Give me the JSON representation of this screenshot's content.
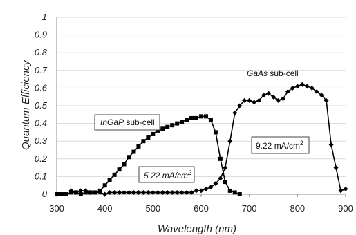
{
  "chart_data": {
    "type": "line",
    "title": "",
    "xlabel": "Wavelength (nm)",
    "ylabel": "Quantum Efficiency",
    "xlim": [
      300,
      900
    ],
    "ylim": [
      0,
      1
    ],
    "x_ticks": [
      "300",
      "400",
      "500",
      "600",
      "700",
      "800",
      "900"
    ],
    "y_ticks": [
      "0",
      "0.1",
      "0.2",
      "0.3",
      "0.4",
      "0.5",
      "0.6",
      "0.7",
      "0.8",
      "0.9",
      "1"
    ],
    "grid": "horizontal",
    "series": [
      {
        "marker": "square",
        "x": [
          300,
          310,
          320,
          330,
          340,
          350,
          360,
          370,
          380,
          390,
          400,
          410,
          420,
          430,
          440,
          450,
          460,
          470,
          480,
          490,
          500,
          510,
          520,
          530,
          540,
          550,
          560,
          570,
          580,
          590,
          600,
          610,
          620,
          630,
          640,
          650,
          660,
          670,
          680
        ],
        "values": [
          0,
          0,
          0,
          0.01,
          0.01,
          0,
          0.01,
          0.01,
          0.01,
          0.02,
          0.05,
          0.08,
          0.11,
          0.14,
          0.17,
          0.21,
          0.24,
          0.27,
          0.3,
          0.32,
          0.34,
          0.36,
          0.37,
          0.38,
          0.39,
          0.4,
          0.41,
          0.42,
          0.43,
          0.43,
          0.44,
          0.44,
          0.42,
          0.35,
          0.2,
          0.07,
          0.02,
          0.01,
          0
        ]
      },
      {
        "marker": "diamond",
        "x": [
          330,
          340,
          350,
          360,
          370,
          380,
          390,
          400,
          410,
          420,
          430,
          440,
          450,
          460,
          470,
          480,
          490,
          500,
          510,
          520,
          530,
          540,
          550,
          560,
          570,
          580,
          590,
          600,
          610,
          620,
          630,
          640,
          650,
          660,
          670,
          680,
          690,
          700,
          710,
          720,
          730,
          740,
          750,
          760,
          770,
          780,
          790,
          800,
          810,
          820,
          830,
          840,
          850,
          860,
          870,
          880,
          890,
          900
        ],
        "values": [
          0.02,
          0.01,
          0.02,
          0.02,
          0.01,
          0.01,
          0.01,
          0,
          0.01,
          0.01,
          0.01,
          0.01,
          0.01,
          0.01,
          0.01,
          0.01,
          0.01,
          0.01,
          0.01,
          0.01,
          0.01,
          0.01,
          0.01,
          0.01,
          0.01,
          0.01,
          0.02,
          0.02,
          0.03,
          0.04,
          0.06,
          0.09,
          0.15,
          0.3,
          0.46,
          0.5,
          0.53,
          0.53,
          0.52,
          0.53,
          0.56,
          0.57,
          0.55,
          0.53,
          0.54,
          0.58,
          0.6,
          0.61,
          0.62,
          0.61,
          0.6,
          0.58,
          0.56,
          0.53,
          0.28,
          0.15,
          0.02,
          0.03
        ]
      }
    ],
    "annotations": {
      "ingap_prefix": "InGaP",
      "ingap_suffix": " sub-cell",
      "gaas_prefix": "GaAs",
      "gaas_suffix": " sub-cell",
      "ingap_current_value": "5.22 mA/cm",
      "ingap_current_exp": "2",
      "gaas_current_value": "9.22 mA/cm",
      "gaas_current_exp": "2"
    }
  }
}
